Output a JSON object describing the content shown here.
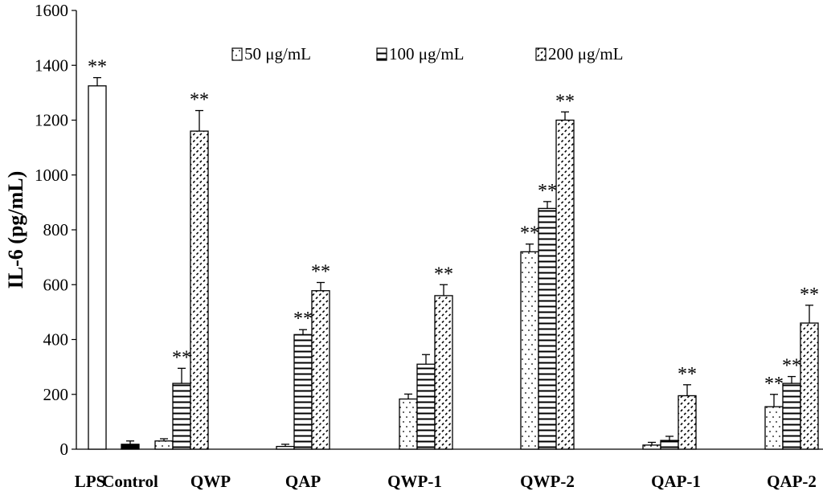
{
  "chart_data": {
    "type": "bar",
    "title": "",
    "xlabel": "",
    "ylabel": "IL-6 (pg/mL)",
    "ylim": [
      0,
      1600
    ],
    "yticks": [
      0,
      200,
      400,
      600,
      800,
      1000,
      1200,
      1400,
      1600
    ],
    "grid": false,
    "legend_position": "top",
    "categories": [
      "LPS",
      "Control",
      "QWP",
      "QAP",
      "QWP-1",
      "QWP-2",
      "QAP-1",
      "QAP-2"
    ],
    "reference_bars": [
      {
        "category": "LPS",
        "value": 1325,
        "error": 30,
        "label": "**",
        "fill": "white"
      },
      {
        "category": "Control",
        "value": 18,
        "error": 12,
        "label": "",
        "fill": "black"
      }
    ],
    "series": [
      {
        "name": "50 μg/mL",
        "pattern": "dots",
        "values": [
          null,
          null,
          30,
          10,
          183,
          720,
          15,
          155
        ],
        "errors": [
          null,
          null,
          8,
          8,
          18,
          28,
          10,
          45
        ],
        "labels": [
          "",
          "",
          "",
          "",
          "",
          "**",
          "",
          "**"
        ]
      },
      {
        "name": "100 μg/mL",
        "pattern": "horizontal-lines",
        "values": [
          null,
          null,
          240,
          418,
          310,
          878,
          32,
          240
        ],
        "errors": [
          null,
          null,
          55,
          18,
          35,
          25,
          15,
          25
        ],
        "labels": [
          "",
          "",
          "**",
          "**",
          "",
          "**",
          "",
          "**"
        ]
      },
      {
        "name": "200 μg/mL",
        "pattern": "diagonal-hatch",
        "values": [
          null,
          null,
          1160,
          578,
          560,
          1200,
          195,
          460
        ],
        "errors": [
          null,
          null,
          75,
          30,
          40,
          30,
          40,
          65
        ],
        "labels": [
          "",
          "",
          "**",
          "**",
          "**",
          "**",
          "**",
          "**"
        ]
      }
    ]
  }
}
